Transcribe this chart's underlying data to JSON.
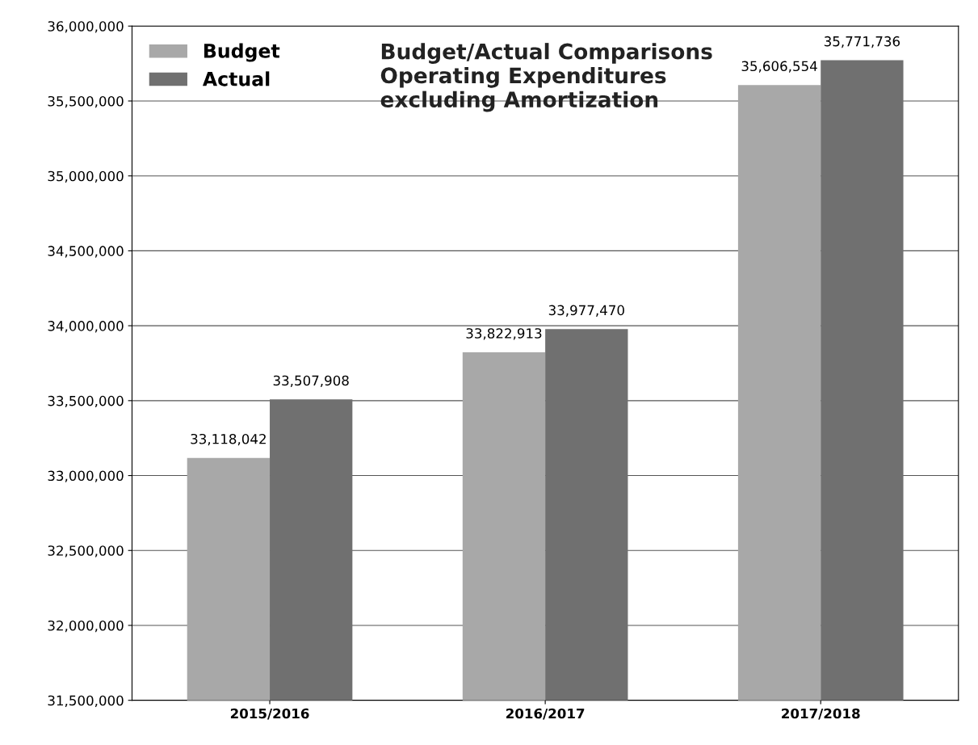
{
  "chart_data": {
    "type": "bar",
    "title": "Budget/Actual Comparisons\nOperating Expenditures\nexcluding Amortization",
    "categories": [
      "2015/2016",
      "2016/2017",
      "2017/2018"
    ],
    "series": [
      {
        "name": "Budget",
        "color": "#a8a8a8",
        "values": [
          33118042,
          33822913,
          35606554
        ],
        "value_labels": [
          "33,118,042",
          "33,822,913",
          "35,606,554"
        ]
      },
      {
        "name": "Actual",
        "color": "#707070",
        "values": [
          33507908,
          33977470,
          35771736
        ],
        "value_labels": [
          "33,507,908",
          "33,977,470",
          "35,771,736"
        ]
      }
    ],
    "ylim": [
      31500000,
      36000000
    ],
    "yticks": [
      {
        "value": 31500000,
        "label": "31,500,000"
      },
      {
        "value": 32000000,
        "label": "32,000,000"
      },
      {
        "value": 32500000,
        "label": "32,500,000"
      },
      {
        "value": 33000000,
        "label": "33,000,000"
      },
      {
        "value": 33500000,
        "label": "33,500,000"
      },
      {
        "value": 34000000,
        "label": "34,000,000"
      },
      {
        "value": 34500000,
        "label": "34,500,000"
      },
      {
        "value": 35000000,
        "label": "35,000,000"
      },
      {
        "value": 35500000,
        "label": "35,500,000"
      },
      {
        "value": 36000000,
        "label": "36,000,000"
      }
    ],
    "grid": "y",
    "legend": "top left"
  }
}
